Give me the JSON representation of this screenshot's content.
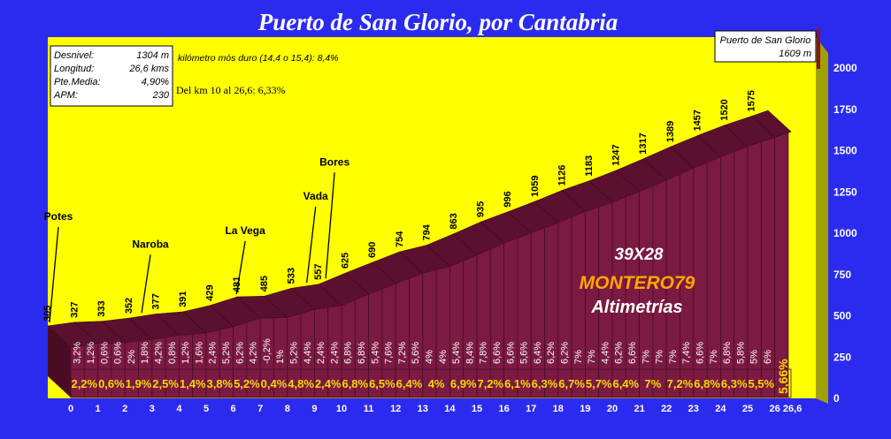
{
  "chart_data": {
    "type": "area",
    "title": "Puerto de San Glorio, por Cantabria",
    "stats": [
      {
        "label": "Desnivel:",
        "value": "1304 m"
      },
      {
        "label": "Longitud:",
        "value": "26,6 kms"
      },
      {
        "label": "Pte.Media:",
        "value": "4,90%"
      },
      {
        "label": "APM:",
        "value": "230"
      }
    ],
    "notes": [
      "kilómetro mós duro (14,4 o 15,4):  8,4%",
      "Del km 10 al 26,6: 6,33%"
    ],
    "summit_box": [
      "Puerto de San Glorio",
      "1609 m"
    ],
    "brand": [
      "39X28",
      "MONTERO79",
      "Altimetrías"
    ],
    "x": [
      0,
      1,
      2,
      3,
      4,
      5,
      6,
      7,
      8,
      9,
      10,
      11,
      12,
      13,
      14,
      15,
      16,
      17,
      18,
      19,
      20,
      21,
      22,
      23,
      24,
      25,
      26,
      26.6
    ],
    "x_tick_labels": [
      "0",
      "1",
      "2",
      "3",
      "4",
      "5",
      "6",
      "7",
      "8",
      "9",
      "10",
      "11",
      "12",
      "13",
      "14",
      "15",
      "16",
      "17",
      "18",
      "19",
      "20",
      "21",
      "22",
      "23",
      "24",
      "25",
      "26",
      "26,6"
    ],
    "altitude": [
      305,
      327,
      333,
      352,
      377,
      391,
      429,
      481,
      485,
      533,
      557,
      625,
      690,
      754,
      794,
      863,
      935,
      996,
      1059,
      1126,
      1183,
      1247,
      1317,
      1389,
      1457,
      1520,
      1575,
      1609
    ],
    "altitude_labels": [
      "305",
      "327",
      "333",
      "352",
      "377",
      "391",
      "429",
      "481",
      "485",
      "533",
      "557",
      "625",
      "690",
      "754",
      "794",
      "863",
      "935",
      "996",
      "1059",
      "1126",
      "1183",
      "1247",
      "1317",
      "1389",
      "1457",
      "1520",
      "1575"
    ],
    "half_km_slopes": [
      "3,2%",
      "1,2%",
      "0,6%",
      "0,6%",
      "2%",
      "1,8%",
      "4,2%",
      "0,8%",
      "1,2%",
      "1,6%",
      "2,4%",
      "5,2%",
      "6,2%",
      "4,2%",
      "-0,2%",
      "1%",
      "5,2%",
      "4,4%",
      "2,4%",
      "2,4%",
      "6,8%",
      "6,8%",
      "5,4%",
      "7,6%",
      "7,2%",
      "5,6%",
      "4%",
      "4%",
      "5,4%",
      "8,4%",
      "7,8%",
      "6,6%",
      "6,6%",
      "5,6%",
      "6,4%",
      "6,2%",
      "6,2%",
      "7%",
      "7%",
      "4,4%",
      "6,2%",
      "6,6%",
      "7%",
      "7%",
      "7%",
      "7,4%",
      "6,6%",
      "7%",
      "6,8%",
      "5,8%",
      "5%",
      "6%"
    ],
    "km_slopes": [
      "2,2%",
      "0,6%",
      "1,9%",
      "2,5%",
      "1,4%",
      "3,8%",
      "5,2%",
      "0,4%",
      "4,8%",
      "2,4%",
      "6,8%",
      "6,5%",
      "6,4%",
      "4%",
      "6,9%",
      "7,2%",
      "6,1%",
      "6,3%",
      "6,7%",
      "5,7%",
      "6,4%",
      "7%",
      "7,2%",
      "6,8%",
      "6,3%",
      "5,5%",
      "5,66%"
    ],
    "places": [
      {
        "name": "Potes",
        "km": 0
      },
      {
        "name": "Naroba",
        "km": 3.4
      },
      {
        "name": "La Vega",
        "km": 6.9
      },
      {
        "name": "Vada",
        "km": 9.5
      },
      {
        "name": "Bores",
        "km": 10.2
      }
    ],
    "y_ticks": [
      "0",
      "250",
      "500",
      "750",
      "1000",
      "1250",
      "1500",
      "1750",
      "2000"
    ],
    "ylim": [
      0,
      2000
    ],
    "colors": {
      "background": "#2b2bf0",
      "plot": "#ffff00",
      "profile": "#7a1840",
      "top": "#5a0f2c",
      "km_label": "#ffd700",
      "brand_orange": "#ffa500"
    }
  }
}
